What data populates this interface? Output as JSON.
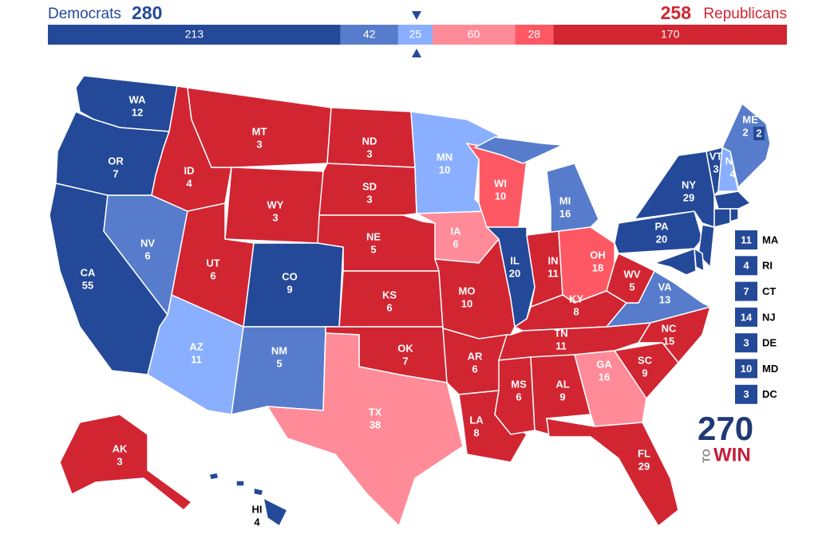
{
  "header": {
    "dem_label": "Democrats",
    "dem_total": 280,
    "rep_total": 258,
    "rep_label": "Republicans"
  },
  "bar": {
    "segments": [
      {
        "value": 213,
        "color": "#244999"
      },
      {
        "value": 42,
        "color": "#577ccc"
      },
      {
        "value": 25,
        "color": "#8aafff"
      },
      {
        "value": 60,
        "color": "#ff8b98"
      },
      {
        "value": 28,
        "color": "#ff5865"
      },
      {
        "value": 170,
        "color": "#d22532"
      }
    ]
  },
  "states": [
    {
      "abbr": "WA",
      "ev": 12,
      "color": "#244999"
    },
    {
      "abbr": "OR",
      "ev": 7,
      "color": "#244999"
    },
    {
      "abbr": "CA",
      "ev": 55,
      "color": "#244999"
    },
    {
      "abbr": "NV",
      "ev": 6,
      "color": "#577ccc"
    },
    {
      "abbr": "ID",
      "ev": 4,
      "color": "#d22532"
    },
    {
      "abbr": "MT",
      "ev": 3,
      "color": "#d22532"
    },
    {
      "abbr": "WY",
      "ev": 3,
      "color": "#d22532"
    },
    {
      "abbr": "UT",
      "ev": 6,
      "color": "#d22532"
    },
    {
      "abbr": "AZ",
      "ev": 11,
      "color": "#8aafff"
    },
    {
      "abbr": "CO",
      "ev": 9,
      "color": "#244999"
    },
    {
      "abbr": "NM",
      "ev": 5,
      "color": "#577ccc"
    },
    {
      "abbr": "ND",
      "ev": 3,
      "color": "#d22532"
    },
    {
      "abbr": "SD",
      "ev": 3,
      "color": "#d22532"
    },
    {
      "abbr": "NE",
      "ev": 5,
      "color": "#d22532"
    },
    {
      "abbr": "KS",
      "ev": 6,
      "color": "#d22532"
    },
    {
      "abbr": "OK",
      "ev": 7,
      "color": "#d22532"
    },
    {
      "abbr": "TX",
      "ev": 38,
      "color": "#ff8b98"
    },
    {
      "abbr": "MN",
      "ev": 10,
      "color": "#8aafff"
    },
    {
      "abbr": "IA",
      "ev": 6,
      "color": "#ff8b98"
    },
    {
      "abbr": "MO",
      "ev": 10,
      "color": "#d22532"
    },
    {
      "abbr": "AR",
      "ev": 6,
      "color": "#d22532"
    },
    {
      "abbr": "LA",
      "ev": 8,
      "color": "#d22532"
    },
    {
      "abbr": "WI",
      "ev": 10,
      "color": "#ff5865"
    },
    {
      "abbr": "IL",
      "ev": 20,
      "color": "#244999"
    },
    {
      "abbr": "MI",
      "ev": 16,
      "color": "#577ccc"
    },
    {
      "abbr": "IN",
      "ev": 11,
      "color": "#d22532"
    },
    {
      "abbr": "OH",
      "ev": 18,
      "color": "#ff5865"
    },
    {
      "abbr": "KY",
      "ev": 8,
      "color": "#d22532"
    },
    {
      "abbr": "TN",
      "ev": 11,
      "color": "#d22532"
    },
    {
      "abbr": "MS",
      "ev": 6,
      "color": "#d22532"
    },
    {
      "abbr": "AL",
      "ev": 9,
      "color": "#d22532"
    },
    {
      "abbr": "GA",
      "ev": 16,
      "color": "#ff8b98"
    },
    {
      "abbr": "FL",
      "ev": 29,
      "color": "#d22532"
    },
    {
      "abbr": "SC",
      "ev": 9,
      "color": "#d22532"
    },
    {
      "abbr": "NC",
      "ev": 15,
      "color": "#d22532"
    },
    {
      "abbr": "VA",
      "ev": 13,
      "color": "#577ccc"
    },
    {
      "abbr": "WV",
      "ev": 5,
      "color": "#d22532"
    },
    {
      "abbr": "PA",
      "ev": 20,
      "color": "#244999"
    },
    {
      "abbr": "NY",
      "ev": 29,
      "color": "#244999"
    },
    {
      "abbr": "VT",
      "ev": 3,
      "color": "#244999"
    },
    {
      "abbr": "NH",
      "ev": 4,
      "color": "#8aafff"
    },
    {
      "abbr": "ME",
      "ev": 2,
      "color": "#577ccc"
    },
    {
      "abbr": "MA",
      "ev": 11,
      "color": "#244999"
    },
    {
      "abbr": "CT",
      "ev": 7,
      "color": "#244999"
    },
    {
      "abbr": "RI",
      "ev": 4,
      "color": "#244999"
    },
    {
      "abbr": "NJ",
      "ev": 14,
      "color": "#244999"
    },
    {
      "abbr": "DE",
      "ev": 3,
      "color": "#244999"
    },
    {
      "abbr": "MD",
      "ev": 10,
      "color": "#244999"
    },
    {
      "abbr": "DC",
      "ev": 3,
      "color": "#244999"
    },
    {
      "abbr": "AK",
      "ev": 3,
      "color": "#d22532"
    },
    {
      "abbr": "HI",
      "ev": 4,
      "color": "#244999"
    }
  ],
  "maine_district": {
    "value": 2,
    "color": "#244999"
  },
  "logo": {
    "number": "270",
    "to": "TO",
    "win": "WIN"
  }
}
